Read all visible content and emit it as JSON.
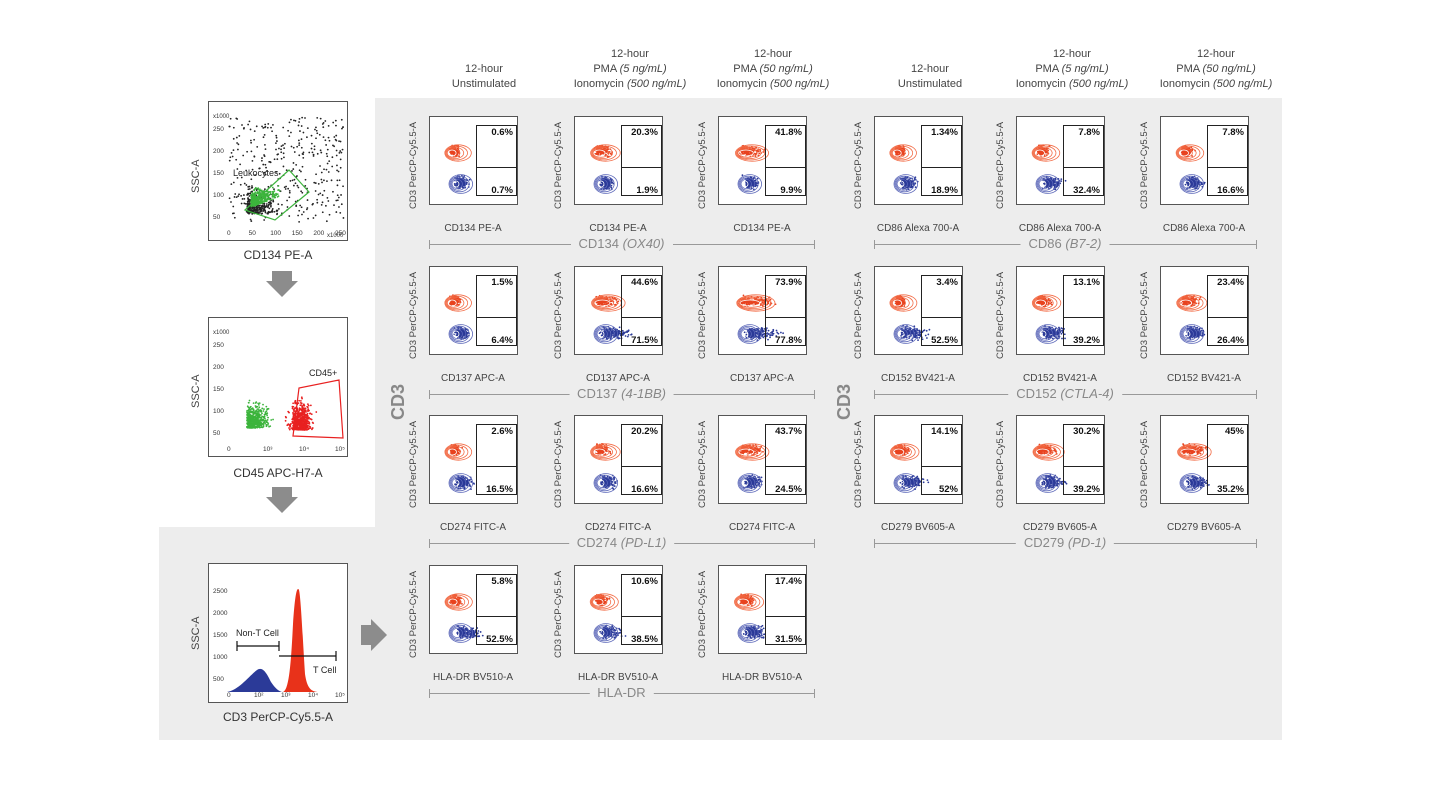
{
  "columns": [
    {
      "line1": "12-hour",
      "line2": "Unstimulated",
      "line3": ""
    },
    {
      "line1": "12-hour",
      "line2": "PMA",
      "line2i": "(5 ng/mL)",
      "line3": "Ionomycin",
      "line3i": "(500 ng/mL)"
    },
    {
      "line1": "12-hour",
      "line2": "PMA",
      "line2i": "(50 ng/mL)",
      "line3": "Ionomycin",
      "line3i": "(500 ng/mL)"
    },
    {
      "line1": "12-hour",
      "line2": "Unstimulated",
      "line3": ""
    },
    {
      "line1": "12-hour",
      "line2": "PMA",
      "line2i": "(5 ng/mL)",
      "line3": "Ionomycin",
      "line3i": "(500 ng/mL)"
    },
    {
      "line1": "12-hour",
      "line2": "PMA",
      "line2i": "(50 ng/mL)",
      "line3": "Ionomycin",
      "line3i": "(500 ng/mL)"
    }
  ],
  "y_axis_label": "CD3 PerCP-Cy5.5-A",
  "big_axis_label": "CD3",
  "markers": [
    {
      "name": "CD134",
      "alias": "(OX40)",
      "xlabel": "CD134 PE-A",
      "top": [
        "0.6%",
        "20.3%",
        "41.8%"
      ],
      "bottom": [
        "0.7%",
        "1.9%",
        "9.9%"
      ]
    },
    {
      "name": "CD86",
      "alias": "(B7-2)",
      "xlabel": "CD86 Alexa 700-A",
      "top": [
        "1.34%",
        "7.8%",
        "7.8%"
      ],
      "bottom": [
        "18.9%",
        "32.4%",
        "16.6%"
      ]
    },
    {
      "name": "CD137",
      "alias": "(4-1BB)",
      "xlabel": "CD137 APC-A",
      "top": [
        "1.5%",
        "44.6%",
        "73.9%"
      ],
      "bottom": [
        "6.4%",
        "71.5%",
        "77.8%"
      ]
    },
    {
      "name": "CD152",
      "alias": "(CTLA-4)",
      "xlabel": "CD152 BV421-A",
      "top": [
        "3.4%",
        "13.1%",
        "23.4%"
      ],
      "bottom": [
        "52.5%",
        "39.2%",
        "26.4%"
      ]
    },
    {
      "name": "CD274",
      "alias": "(PD-L1)",
      "xlabel": "CD274 FITC-A",
      "top": [
        "2.6%",
        "20.2%",
        "43.7%"
      ],
      "bottom": [
        "16.5%",
        "16.6%",
        "24.5%"
      ]
    },
    {
      "name": "CD279",
      "alias": "(PD-1)",
      "xlabel": "CD279 BV605-A",
      "top": [
        "14.1%",
        "30.2%",
        "45%"
      ],
      "bottom": [
        "52%",
        "39.2%",
        "35.2%"
      ]
    },
    {
      "name": "HLA-DR",
      "alias": "",
      "xlabel": "HLA-DR BV510-A",
      "top": [
        "5.8%",
        "10.6%",
        "17.4%"
      ],
      "bottom": [
        "52.5%",
        "38.5%",
        "31.5%"
      ]
    }
  ],
  "gating": [
    {
      "ylabel": "SSC-A",
      "xlabel": "CD134 PE-A",
      "gate_label": "Leukocytes",
      "y_scale": "x1000",
      "x_scale": "x1000",
      "x_ticks": [
        "0",
        "50",
        "100",
        "150",
        "200",
        "250"
      ],
      "y_ticks": [
        "50",
        "100",
        "150",
        "200",
        "250"
      ]
    },
    {
      "ylabel": "SSC-A",
      "xlabel": "CD45 APC-H7-A",
      "gate_label": "CD45+",
      "y_scale": "x1000",
      "y_ticks": [
        "50",
        "100",
        "150",
        "200",
        "250"
      ],
      "x_ticks": [
        "0",
        "10³",
        "10⁴",
        "10⁵"
      ]
    },
    {
      "ylabel": "SSC-A",
      "xlabel": "CD3 PerCP-Cy5.5-A",
      "gate_label_1": "Non-T Cell",
      "gate_label_2": "T Cell",
      "y_ticks": [
        "500",
        "1000",
        "1500",
        "2000",
        "2500"
      ],
      "x_ticks": [
        "0",
        "10²",
        "10³",
        "10⁴",
        "10⁵"
      ]
    }
  ],
  "colors": {
    "red": "#e8431f",
    "blue": "#2b3a98",
    "green": "#3cb43c",
    "grey_panel": "#ededed"
  }
}
